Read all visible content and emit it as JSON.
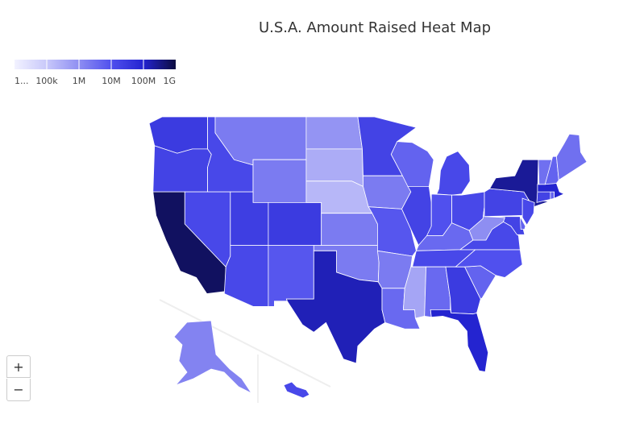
{
  "chart_data": {
    "type": "choropleth",
    "title": "U.S.A. Amount Raised Heat Map",
    "values": [
      30000000,
      20000000,
      600000000,
      15000000,
      15000000,
      2000000,
      2000000,
      25000000,
      15000000,
      30000000,
      8000000,
      800000,
      300000,
      200000,
      2000000,
      2000000,
      150000000,
      20000000,
      2000000,
      8000000,
      2000000,
      4000000,
      5000000,
      20000000,
      15000000,
      10000000,
      15000000,
      4000000,
      15000000,
      400000,
      4000000,
      30000000,
      100000000,
      5000000,
      10000000,
      15000000,
      1000000,
      20000000,
      250000000,
      20000000,
      5000000,
      15000000,
      20000000,
      5000000,
      100000000,
      3000000,
      5000000,
      3000000,
      1500000,
      15000000
    ],
    "colorscale": [
      "#f2f2ff",
      "#c8c8fa",
      "#8e8ef2",
      "#5050ee",
      "#2424d0",
      "#0c0c40"
    ],
    "ticks": [
      {
        "value": 1,
        "label": "1..."
      },
      {
        "value": 100000,
        "label": "100k"
      },
      {
        "value": 1000000,
        "label": "1M"
      },
      {
        "value": 10000000,
        "label": "10M"
      },
      {
        "value": 100000000,
        "label": "100M"
      },
      {
        "value": 1000000000,
        "label": "1G"
      }
    ]
  },
  "zoom": {
    "in": "+",
    "out": "−"
  }
}
